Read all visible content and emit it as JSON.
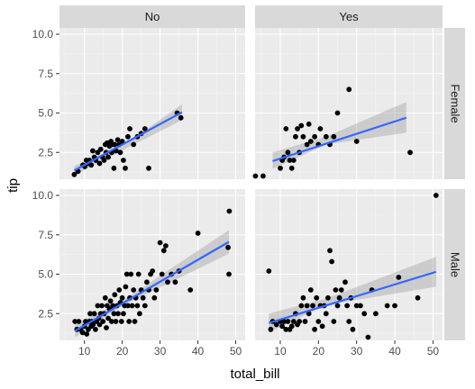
{
  "chart_data": {
    "type": "scatter",
    "xlabel": "total_bill",
    "ylabel": "tip",
    "x_range": [
      3.4,
      52.5
    ],
    "y_range": [
      0.8,
      10.4
    ],
    "x_ticks": [
      10,
      20,
      30,
      40,
      50
    ],
    "y_ticks": [
      2.5,
      5.0,
      7.5,
      10.0
    ],
    "x_tick_labels": [
      "10",
      "20",
      "30",
      "40",
      "50"
    ],
    "y_tick_labels": [
      "2.5",
      "5.0",
      "7.5",
      "10.0"
    ],
    "col_facet_labels": [
      "No",
      "Yes"
    ],
    "row_facet_labels": [
      "Female",
      "Male"
    ],
    "grid": true,
    "panels": [
      {
        "col": "No",
        "row": "Female",
        "fit": {
          "x": [
            7.3,
            35.8
          ],
          "y": [
            1.35,
            5.05
          ],
          "band": [
            [
              7.3,
              1.05,
              1.65
            ],
            [
              21.0,
              2.75,
              3.05
            ],
            [
              35.8,
              4.55,
              5.55
            ]
          ]
        },
        "points": [
          [
            7.3,
            1.1
          ],
          [
            8.3,
            1.3
          ],
          [
            9.6,
            1.7
          ],
          [
            10.1,
            1.6
          ],
          [
            10.5,
            2.0
          ],
          [
            11.0,
            1.8
          ],
          [
            11.3,
            2.0
          ],
          [
            11.8,
            1.7
          ],
          [
            12.2,
            2.6
          ],
          [
            12.6,
            2.2
          ],
          [
            13.0,
            2.0
          ],
          [
            13.5,
            2.5
          ],
          [
            14.0,
            1.8
          ],
          [
            14.3,
            2.7
          ],
          [
            14.8,
            2.2
          ],
          [
            15.2,
            2.0
          ],
          [
            15.5,
            3.0
          ],
          [
            15.7,
            2.5
          ],
          [
            16.0,
            3.1
          ],
          [
            16.3,
            2.2
          ],
          [
            16.6,
            2.9
          ],
          [
            17.0,
            3.2
          ],
          [
            17.2,
            2.5
          ],
          [
            17.5,
            3.0
          ],
          [
            17.8,
            1.5
          ],
          [
            18.0,
            3.0
          ],
          [
            18.4,
            2.6
          ],
          [
            18.8,
            3.3
          ],
          [
            19.2,
            3.0
          ],
          [
            19.5,
            2.5
          ],
          [
            20.0,
            3.2
          ],
          [
            20.3,
            2.0
          ],
          [
            20.8,
            1.5
          ],
          [
            21.5,
            3.5
          ],
          [
            22.0,
            4.0
          ],
          [
            23.0,
            3.0
          ],
          [
            24.0,
            3.5
          ],
          [
            25.0,
            3.7
          ],
          [
            26.0,
            4.0
          ],
          [
            27.0,
            1.5
          ],
          [
            34.5,
            5.0
          ],
          [
            35.5,
            4.7
          ]
        ]
      },
      {
        "col": "Yes",
        "row": "Female",
        "fit": {
          "x": [
            8.0,
            43.0
          ],
          "y": [
            1.95,
            4.7
          ],
          "band": [
            [
              8.0,
              1.45,
              2.5
            ],
            [
              22.0,
              3.0,
              3.5
            ],
            [
              43.0,
              3.75,
              5.7
            ]
          ]
        },
        "points": [
          [
            3.5,
            1.0
          ],
          [
            5.5,
            1.0
          ],
          [
            10.0,
            1.5
          ],
          [
            10.5,
            2.0
          ],
          [
            11.0,
            2.2
          ],
          [
            11.5,
            4.0
          ],
          [
            12.0,
            2.5
          ],
          [
            12.5,
            2.0
          ],
          [
            13.0,
            1.5
          ],
          [
            13.5,
            2.0
          ],
          [
            14.0,
            3.5
          ],
          [
            14.5,
            4.0
          ],
          [
            15.0,
            2.5
          ],
          [
            15.5,
            4.2
          ],
          [
            16.0,
            3.5
          ],
          [
            17.0,
            3.0
          ],
          [
            17.5,
            4.3
          ],
          [
            18.0,
            3.2
          ],
          [
            19.0,
            3.5
          ],
          [
            20.0,
            3.0
          ],
          [
            20.5,
            4.0
          ],
          [
            22.0,
            3.5
          ],
          [
            23.0,
            3.0
          ],
          [
            24.0,
            3.5
          ],
          [
            25.0,
            5.0
          ],
          [
            28.0,
            6.5
          ],
          [
            30.0,
            3.2
          ],
          [
            44.0,
            2.5
          ]
        ]
      },
      {
        "col": "No",
        "row": "Male",
        "fit": {
          "x": [
            7.5,
            48.2
          ],
          "y": [
            1.4,
            7.05
          ],
          "band": [
            [
              7.5,
              1.0,
              1.8
            ],
            [
              20.0,
              3.0,
              3.3
            ],
            [
              48.2,
              6.3,
              7.8
            ]
          ]
        },
        "points": [
          [
            7.5,
            2.0
          ],
          [
            8.0,
            1.5
          ],
          [
            8.5,
            2.0
          ],
          [
            9.0,
            1.5
          ],
          [
            9.5,
            1.3
          ],
          [
            10.0,
            1.7
          ],
          [
            10.3,
            2.0
          ],
          [
            10.6,
            1.2
          ],
          [
            11.0,
            1.5
          ],
          [
            11.3,
            2.0
          ],
          [
            11.5,
            2.5
          ],
          [
            11.8,
            1.7
          ],
          [
            12.0,
            2.0
          ],
          [
            12.3,
            1.8
          ],
          [
            12.6,
            2.5
          ],
          [
            12.9,
            1.5
          ],
          [
            13.2,
            2.0
          ],
          [
            13.5,
            3.0
          ],
          [
            13.8,
            2.2
          ],
          [
            14.0,
            1.8
          ],
          [
            14.3,
            2.5
          ],
          [
            14.6,
            3.0
          ],
          [
            14.9,
            2.0
          ],
          [
            15.2,
            2.5
          ],
          [
            15.5,
            3.5
          ],
          [
            15.8,
            1.6
          ],
          [
            16.0,
            3.0
          ],
          [
            16.3,
            2.2
          ],
          [
            16.6,
            2.8
          ],
          [
            16.9,
            3.3
          ],
          [
            17.2,
            2.0
          ],
          [
            17.5,
            3.0
          ],
          [
            17.8,
            2.5
          ],
          [
            18.0,
            3.7
          ],
          [
            18.3,
            2.0
          ],
          [
            18.6,
            3.0
          ],
          [
            18.9,
            2.5
          ],
          [
            19.2,
            4.0
          ],
          [
            19.5,
            3.2
          ],
          [
            19.8,
            2.0
          ],
          [
            20.0,
            3.5
          ],
          [
            20.3,
            2.5
          ],
          [
            20.6,
            3.0
          ],
          [
            20.9,
            4.2
          ],
          [
            21.2,
            5.0
          ],
          [
            21.5,
            3.0
          ],
          [
            21.8,
            2.0
          ],
          [
            22.0,
            3.5
          ],
          [
            22.3,
            5.0
          ],
          [
            22.6,
            3.0
          ],
          [
            23.0,
            4.0
          ],
          [
            23.3,
            2.0
          ],
          [
            23.6,
            3.5
          ],
          [
            24.0,
            3.0
          ],
          [
            24.3,
            5.0
          ],
          [
            24.6,
            2.5
          ],
          [
            25.0,
            4.0
          ],
          [
            25.5,
            3.5
          ],
          [
            26.0,
            3.0
          ],
          [
            26.5,
            4.5
          ],
          [
            27.0,
            4.0
          ],
          [
            27.5,
            5.0
          ],
          [
            28.0,
            5.2
          ],
          [
            28.5,
            3.5
          ],
          [
            29.0,
            4.0
          ],
          [
            30.0,
            7.0
          ],
          [
            30.5,
            5.0
          ],
          [
            31.0,
            6.5
          ],
          [
            31.5,
            6.8
          ],
          [
            32.0,
            4.5
          ],
          [
            33.0,
            5.0
          ],
          [
            34.0,
            4.5
          ],
          [
            35.0,
            5.2
          ],
          [
            38.0,
            4.0
          ],
          [
            40.0,
            7.6
          ],
          [
            48.0,
            6.7
          ],
          [
            48.2,
            5.0
          ],
          [
            48.3,
            9.0
          ]
        ]
      },
      {
        "col": "Yes",
        "row": "Male",
        "fit": {
          "x": [
            7.0,
            50.8
          ],
          "y": [
            1.9,
            5.15
          ],
          "band": [
            [
              7.0,
              1.3,
              2.5
            ],
            [
              22.0,
              3.05,
              3.45
            ],
            [
              50.8,
              4.2,
              6.1
            ]
          ]
        },
        "points": [
          [
            7.0,
            5.2
          ],
          [
            7.5,
            1.5
          ],
          [
            8.0,
            2.0
          ],
          [
            9.0,
            1.8
          ],
          [
            10.0,
            2.0
          ],
          [
            10.5,
            1.7
          ],
          [
            11.0,
            2.0
          ],
          [
            11.5,
            1.5
          ],
          [
            12.0,
            2.0
          ],
          [
            12.5,
            1.5
          ],
          [
            13.0,
            1.7
          ],
          [
            13.5,
            2.0
          ],
          [
            14.0,
            2.5
          ],
          [
            14.5,
            1.8
          ],
          [
            15.0,
            2.0
          ],
          [
            15.5,
            3.0
          ],
          [
            16.0,
            3.5
          ],
          [
            16.5,
            2.0
          ],
          [
            17.0,
            3.0
          ],
          [
            17.5,
            2.5
          ],
          [
            18.0,
            4.0
          ],
          [
            18.5,
            3.0
          ],
          [
            19.0,
            1.5
          ],
          [
            19.5,
            3.5
          ],
          [
            20.0,
            2.0
          ],
          [
            20.5,
            3.0
          ],
          [
            21.0,
            1.7
          ],
          [
            21.5,
            3.0
          ],
          [
            22.0,
            2.5
          ],
          [
            22.5,
            3.5
          ],
          [
            23.0,
            6.5
          ],
          [
            23.5,
            5.8
          ],
          [
            24.0,
            2.0
          ],
          [
            24.5,
            4.0
          ],
          [
            25.0,
            3.0
          ],
          [
            25.5,
            3.5
          ],
          [
            26.0,
            4.0
          ],
          [
            27.0,
            4.5
          ],
          [
            27.5,
            3.0
          ],
          [
            28.0,
            2.0
          ],
          [
            28.5,
            3.5
          ],
          [
            29.0,
            1.5
          ],
          [
            30.0,
            3.0
          ],
          [
            31.0,
            3.0
          ],
          [
            32.0,
            2.5
          ],
          [
            33.0,
            1.0
          ],
          [
            34.0,
            4.0
          ],
          [
            35.0,
            2.5
          ],
          [
            38.0,
            3.0
          ],
          [
            40.0,
            3.0
          ],
          [
            41.0,
            4.8
          ],
          [
            46.0,
            3.5
          ],
          [
            50.8,
            10.0
          ]
        ]
      }
    ]
  }
}
